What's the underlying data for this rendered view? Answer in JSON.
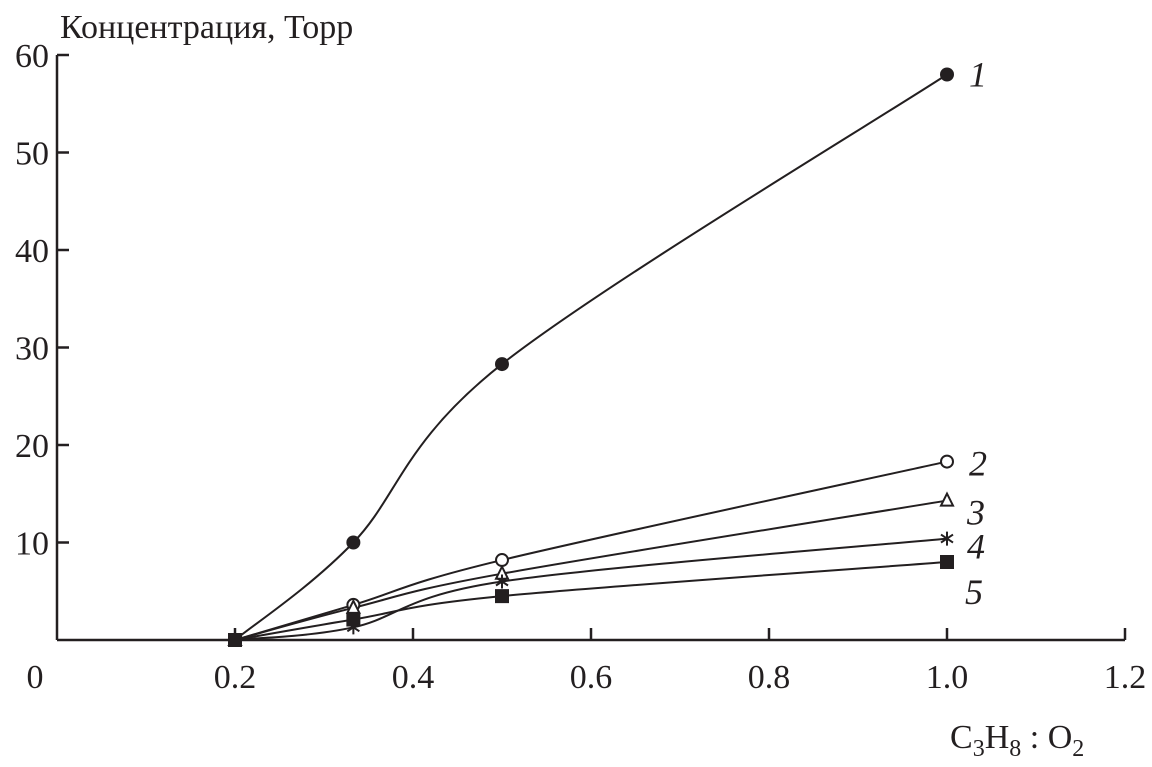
{
  "chart_data": {
    "type": "line",
    "ylabel": "Концентрация, Торр",
    "xlabel": {
      "parts": [
        [
          "C",
          ""
        ],
        [
          "3",
          "sub"
        ],
        [
          "H",
          ""
        ],
        [
          "8",
          "sub"
        ],
        [
          " : O",
          ""
        ],
        [
          "2",
          "sub"
        ]
      ],
      "text": "C3H8 : O2"
    },
    "xlim": [
      0,
      1.2
    ],
    "ylim": [
      0,
      60
    ],
    "x_ticks": [
      0.2,
      0.4,
      0.6,
      0.8,
      1.0,
      1.2
    ],
    "x_tick_labels": [
      "0.2",
      "0.4",
      "0.6",
      "0.8",
      "1.0",
      "1.2"
    ],
    "origin_label": "0",
    "y_ticks": [
      10,
      20,
      30,
      40,
      50,
      60
    ],
    "y_tick_labels": [
      "10",
      "20",
      "30",
      "40",
      "50",
      "60"
    ],
    "grid": false,
    "x": [
      0.2,
      0.333,
      0.5,
      1.0
    ],
    "series": [
      {
        "name": "1",
        "marker": "filled-circle",
        "values": [
          0,
          10,
          28.3,
          58
        ]
      },
      {
        "name": "2",
        "marker": "open-circle",
        "values": [
          0,
          3.6,
          8.2,
          18.3
        ]
      },
      {
        "name": "3",
        "marker": "open-triangle",
        "values": [
          0,
          3.3,
          6.8,
          14.3
        ]
      },
      {
        "name": "4",
        "marker": "asterisk",
        "values": [
          0,
          1.3,
          6.0,
          10.4
        ]
      },
      {
        "name": "5",
        "marker": "filled-square",
        "values": [
          0,
          2.1,
          4.5,
          8.0
        ]
      }
    ],
    "color": "#231f20"
  }
}
